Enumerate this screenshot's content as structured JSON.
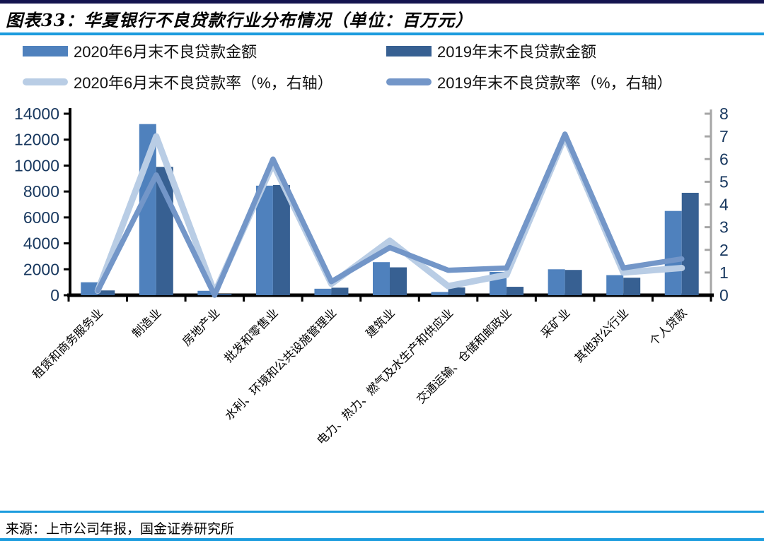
{
  "header": {
    "title": "图表33：华夏银行不良贷款行业分布情况（单位：百万元）"
  },
  "footer": {
    "source": "来源：上市公司年报，国金证券研究所"
  },
  "colors": {
    "bar_2020": "#4F81BD",
    "bar_2019": "#376092",
    "line_2020": "#B9CDE5",
    "line_2019": "#7396C8",
    "rule_blue": "#1B9CDE",
    "axis_black": "#000000",
    "axis_gray": "#A6A6A6",
    "axis_text": "#17375E"
  },
  "chart_data": {
    "type": "bar",
    "subtype": "bar-line-combo",
    "title": "华夏银行不良贷款行业分布情况（单位：百万元）",
    "legend_position": "top",
    "grid": false,
    "categories": [
      "租赁和商务服务业",
      "制造业",
      "房地产业",
      "批发和零售业",
      "水利、环境和公共设施管理业",
      "建筑业",
      "电力、热力、燃气及水生产和供应业",
      "交通运输、仓储和邮政业",
      "采矿业",
      "其他对公行业",
      "个人贷款"
    ],
    "series": [
      {
        "name": "2020年6月末不良贷款金额",
        "type": "bar",
        "axis": "left",
        "color": "#4F81BD",
        "values": [
          1000,
          13200,
          340,
          8450,
          500,
          2550,
          250,
          1800,
          2000,
          1550,
          6500
        ]
      },
      {
        "name": "2019年末不良贷款金额",
        "type": "bar",
        "axis": "left",
        "color": "#376092",
        "values": [
          370,
          9900,
          100,
          8500,
          580,
          2150,
          600,
          650,
          1950,
          1350,
          7900
        ]
      },
      {
        "name": "2020年6月末不良贷款率（%，右轴）",
        "type": "line",
        "axis": "right",
        "color": "#B9CDE5",
        "values": [
          0.2,
          7.0,
          0.1,
          5.8,
          0.5,
          2.4,
          0.4,
          0.9,
          7.0,
          1.0,
          1.2
        ]
      },
      {
        "name": "2019年末不良贷款率（%，右轴）",
        "type": "line",
        "axis": "right",
        "color": "#7396C8",
        "values": [
          0.2,
          5.3,
          0.0,
          6.0,
          0.6,
          2.1,
          1.1,
          1.2,
          7.1,
          1.2,
          1.6
        ]
      }
    ],
    "left_axis": {
      "min": 0,
      "max": 14000,
      "step": 2000,
      "ticks": [
        "0",
        "2000",
        "4000",
        "6000",
        "8000",
        "10000",
        "12000",
        "14000"
      ]
    },
    "right_axis": {
      "min": 0,
      "max": 8,
      "step": 1,
      "ticks": [
        "0",
        "1",
        "2",
        "3",
        "4",
        "5",
        "6",
        "7",
        "8"
      ]
    }
  }
}
